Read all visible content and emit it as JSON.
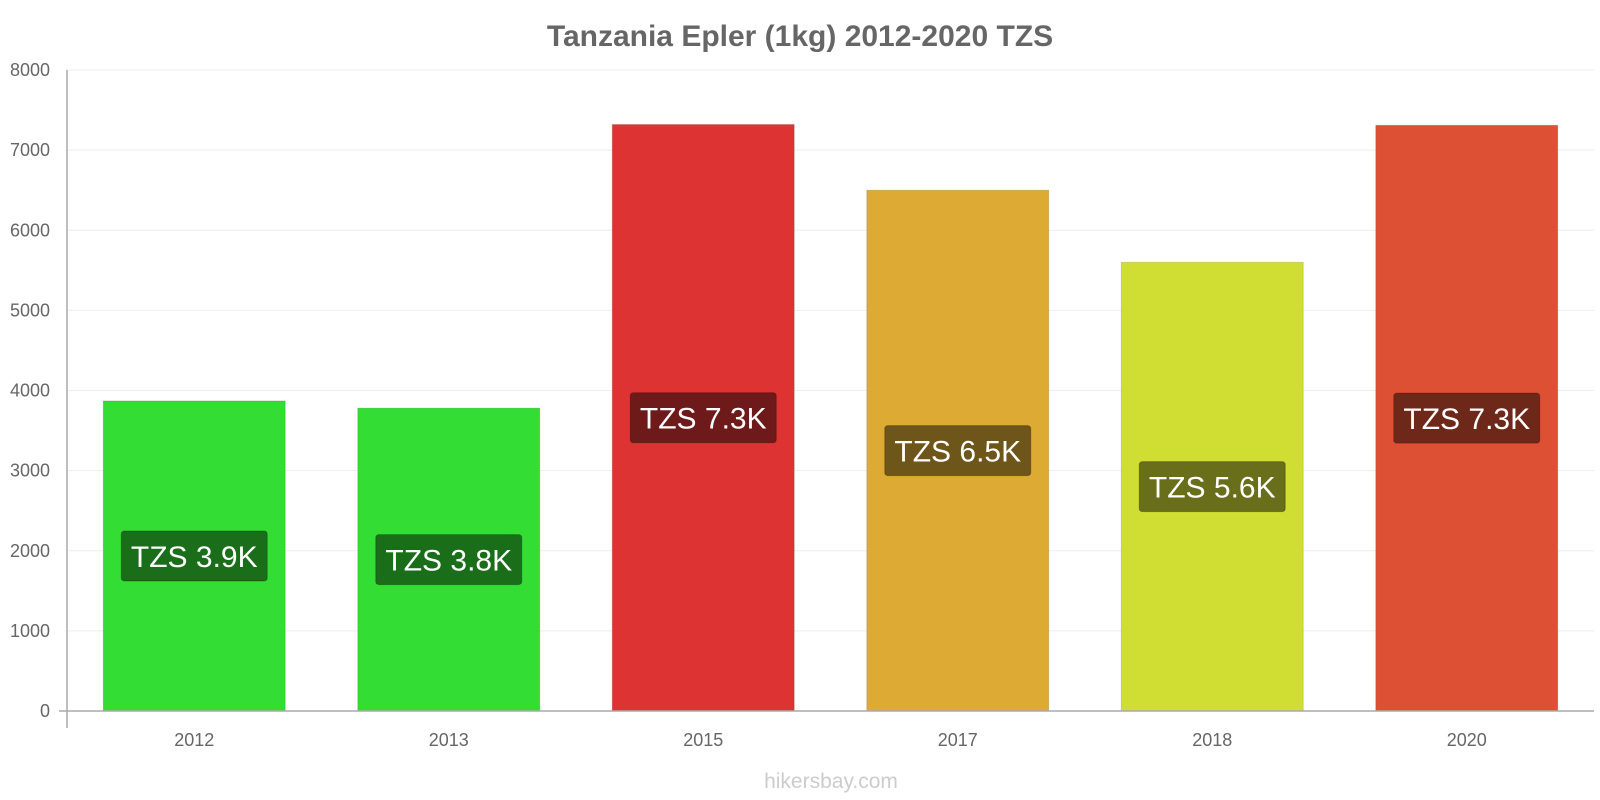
{
  "chart_data": {
    "type": "bar",
    "title": "Tanzania Epler (1kg) 2012-2020 TZS",
    "xlabel": "",
    "ylabel": "",
    "ylim": [
      0,
      8000
    ],
    "yticks": [
      0,
      1000,
      2000,
      3000,
      4000,
      5000,
      6000,
      7000,
      8000
    ],
    "categories": [
      "2012",
      "2013",
      "2015",
      "2017",
      "2018",
      "2020"
    ],
    "values": [
      3870,
      3780,
      7320,
      6500,
      5600,
      7310
    ],
    "data_labels": [
      "TZS 3.9K",
      "TZS 3.8K",
      "TZS 7.3K",
      "TZS 6.5K",
      "TZS 5.6K",
      "TZS 7.3K"
    ],
    "bar_colors": [
      "#33dd33",
      "#33dd33",
      "#dd3333",
      "#ddaa33",
      "#d0dd33",
      "#dd5033"
    ],
    "label_colors": [
      "#1a6e1a",
      "#1a6e1a",
      "#6e1a1a",
      "#6e5519",
      "#686e19",
      "#6e2819"
    ],
    "grid": true,
    "legend": "none"
  },
  "footer": {
    "watermark": "hikersbay.com"
  }
}
